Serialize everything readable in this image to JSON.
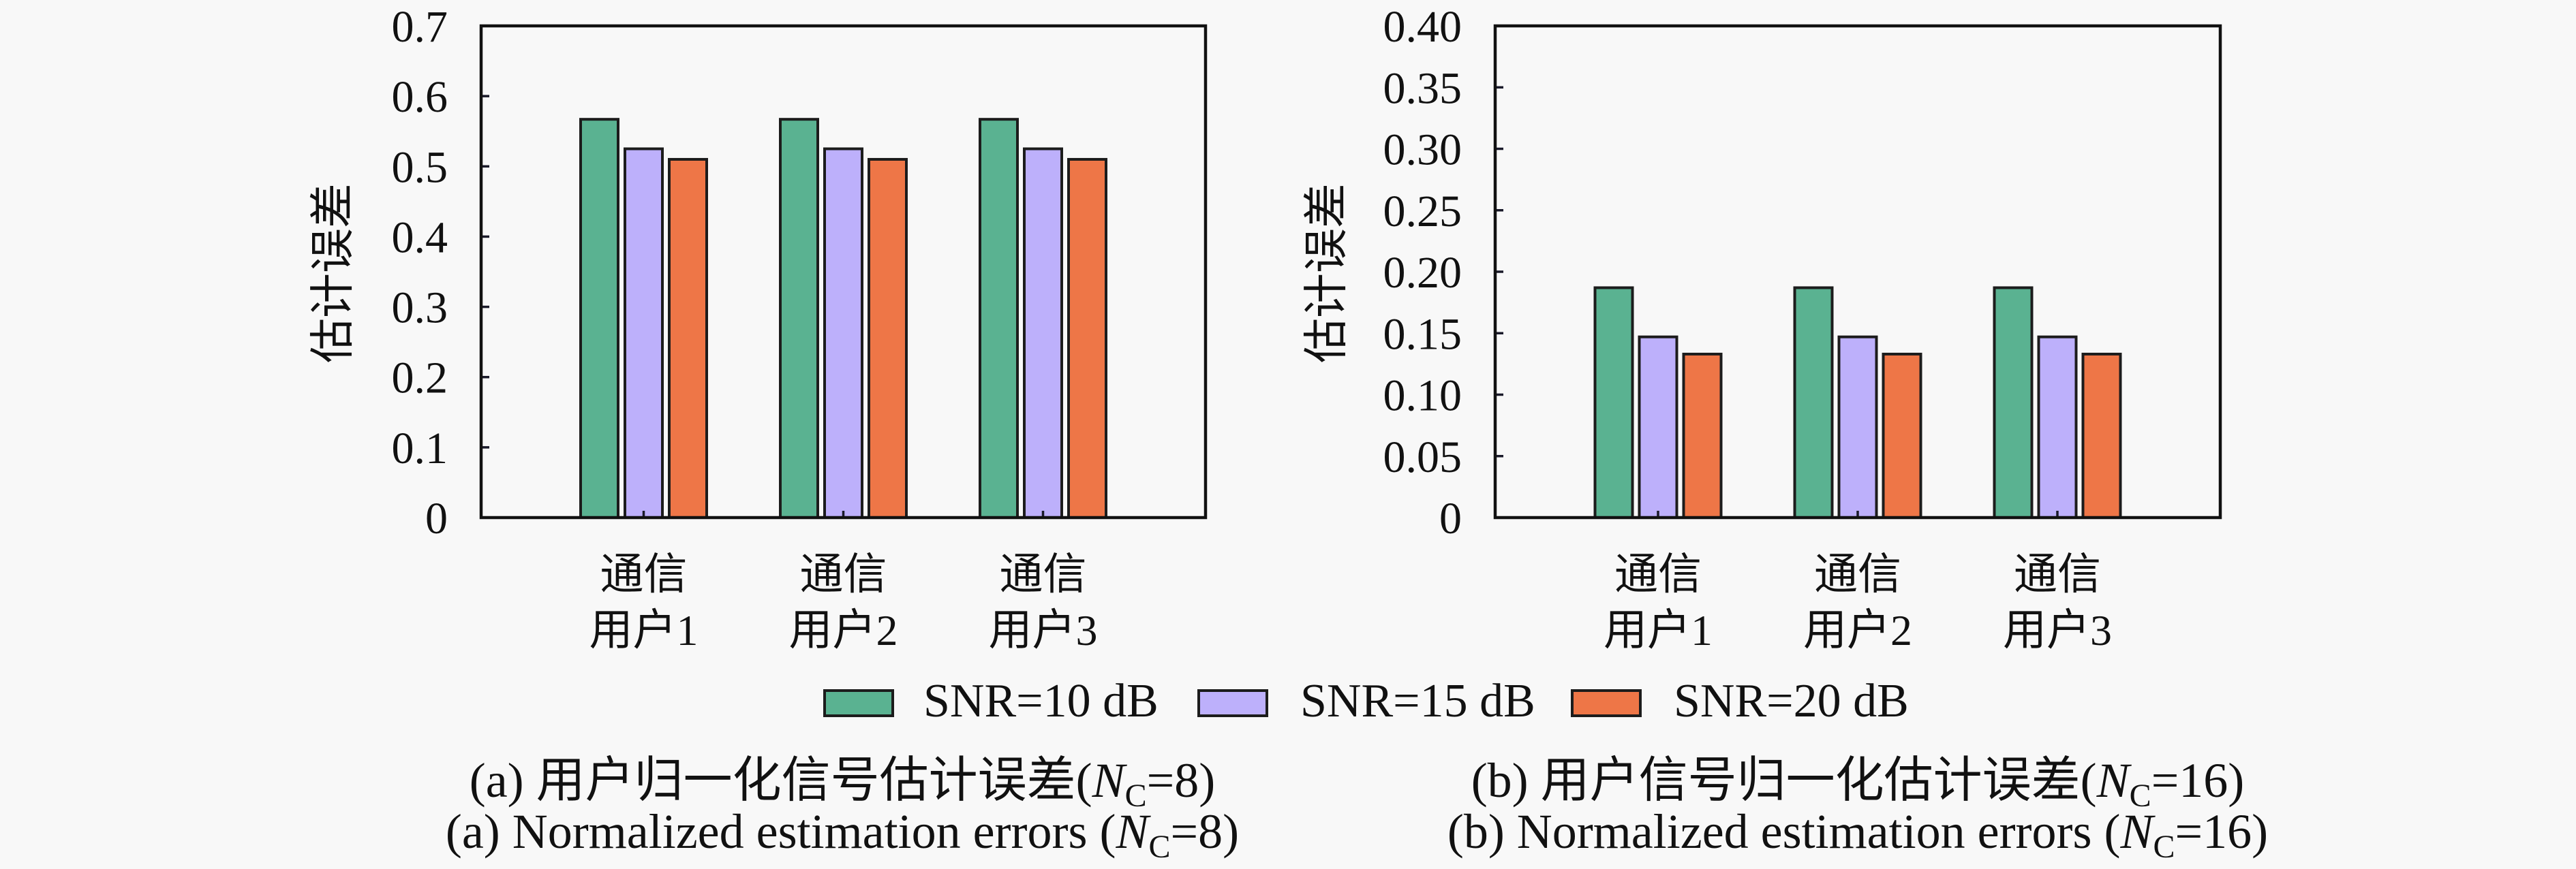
{
  "chart_data": [
    {
      "type": "bar",
      "panel": "a",
      "title": "",
      "xlabel": "",
      "ylabel": "估计误差",
      "ylim": [
        0,
        0.7
      ],
      "yticks": [
        0,
        0.1,
        0.2,
        0.3,
        0.4,
        0.5,
        0.6,
        0.7
      ],
      "ytick_labels": [
        "0",
        "0.1",
        "0.2",
        "0.3",
        "0.4",
        "0.5",
        "0.6",
        "0.7"
      ],
      "grid": false,
      "legend_position": "bottom-center",
      "categories": [
        "通信\n用户1",
        "通信\n用户2",
        "通信\n用户3"
      ],
      "series": [
        {
          "name": "SNR=10 dB",
          "color": "#5AB291",
          "values": [
            0.567,
            0.567,
            0.567
          ]
        },
        {
          "name": "SNR=15 dB",
          "color": "#BDB0FB",
          "values": [
            0.525,
            0.525,
            0.525
          ]
        },
        {
          "name": "SNR=20 dB",
          "color": "#EE7647",
          "values": [
            0.51,
            0.51,
            0.51
          ]
        }
      ],
      "caption": {
        "zh": {
          "prefix": "(a) 用户归一化信号估计误差(",
          "var": "N",
          "sub": "C",
          "suffix": "=8)"
        },
        "en": {
          "prefix": "(a) Normalized estimation errors (",
          "var": "N",
          "sub": "C",
          "suffix": "=8)"
        }
      }
    },
    {
      "type": "bar",
      "panel": "b",
      "title": "",
      "xlabel": "",
      "ylabel": "估计误差",
      "ylim": [
        0,
        0.4
      ],
      "yticks": [
        0,
        0.05,
        0.1,
        0.15,
        0.2,
        0.25,
        0.3,
        0.35,
        0.4
      ],
      "ytick_labels": [
        "0",
        "0.05",
        "0.10",
        "0.15",
        "0.20",
        "0.25",
        "0.30",
        "0.35",
        "0.40"
      ],
      "grid": false,
      "legend_position": "bottom-center",
      "categories": [
        "通信\n用户1",
        "通信\n用户2",
        "通信\n用户3"
      ],
      "series": [
        {
          "name": "SNR=10 dB",
          "color": "#5AB291",
          "values": [
            0.187,
            0.187,
            0.187
          ]
        },
        {
          "name": "SNR=15 dB",
          "color": "#BDB0FB",
          "values": [
            0.147,
            0.147,
            0.147
          ]
        },
        {
          "name": "SNR=20 dB",
          "color": "#EE7647",
          "values": [
            0.133,
            0.133,
            0.133
          ]
        }
      ],
      "caption": {
        "zh": {
          "prefix": "(b) 用户信号归一化估计误差(",
          "var": "N",
          "sub": "C",
          "suffix": "=16)"
        },
        "en": {
          "prefix": "(b) Normalized estimation errors (",
          "var": "N",
          "sub": "C",
          "suffix": "=16)"
        }
      }
    }
  ]
}
